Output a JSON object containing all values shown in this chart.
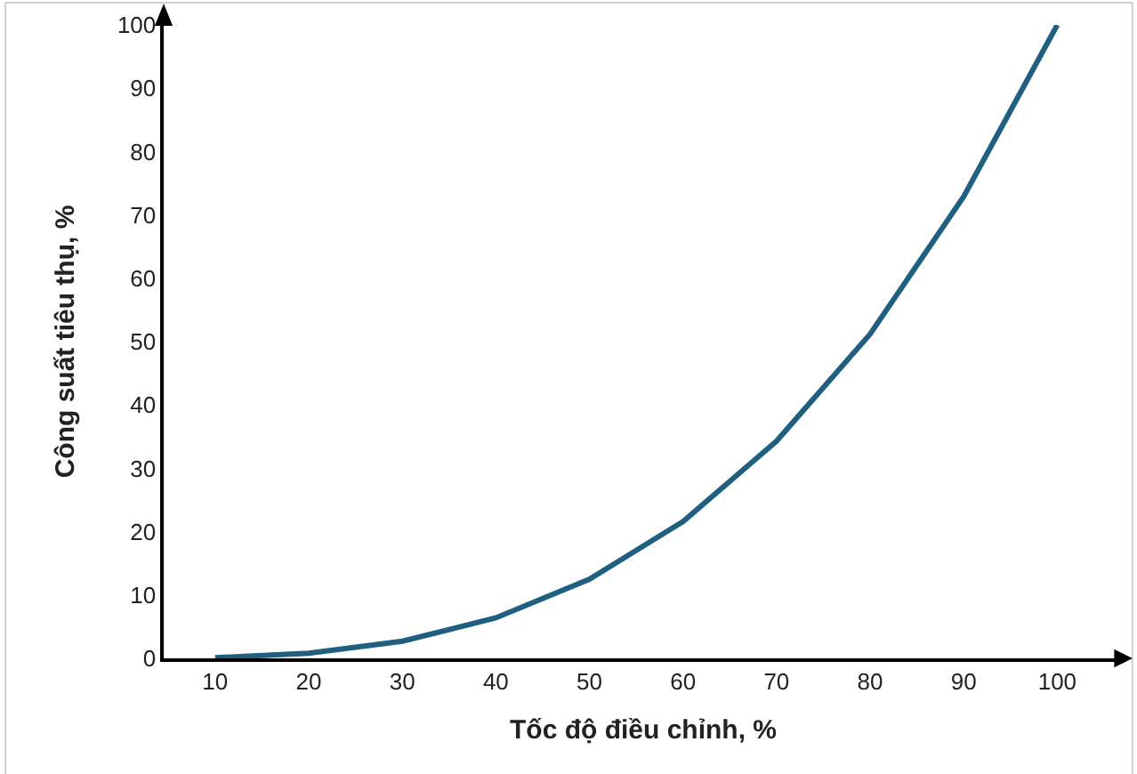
{
  "chart_data": {
    "type": "line",
    "xlabel": "Tốc độ điều chỉnh, %",
    "ylabel": "Công suất tiêu thụ, %",
    "categories": [
      "10",
      "20",
      "30",
      "40",
      "50",
      "60",
      "70",
      "80",
      "90",
      "100"
    ],
    "series": [
      {
        "color": "#1f5f80",
        "values": [
          0.1,
          0.8,
          2.7,
          6.4,
          12.5,
          21.6,
          34.3,
          51.2,
          72.9,
          100
        ]
      }
    ],
    "ylim": [
      0,
      100
    ],
    "yticks": [
      0,
      10,
      20,
      30,
      40,
      50,
      60,
      70,
      80,
      90,
      100
    ],
    "marker": "none",
    "line_style": "solid"
  }
}
